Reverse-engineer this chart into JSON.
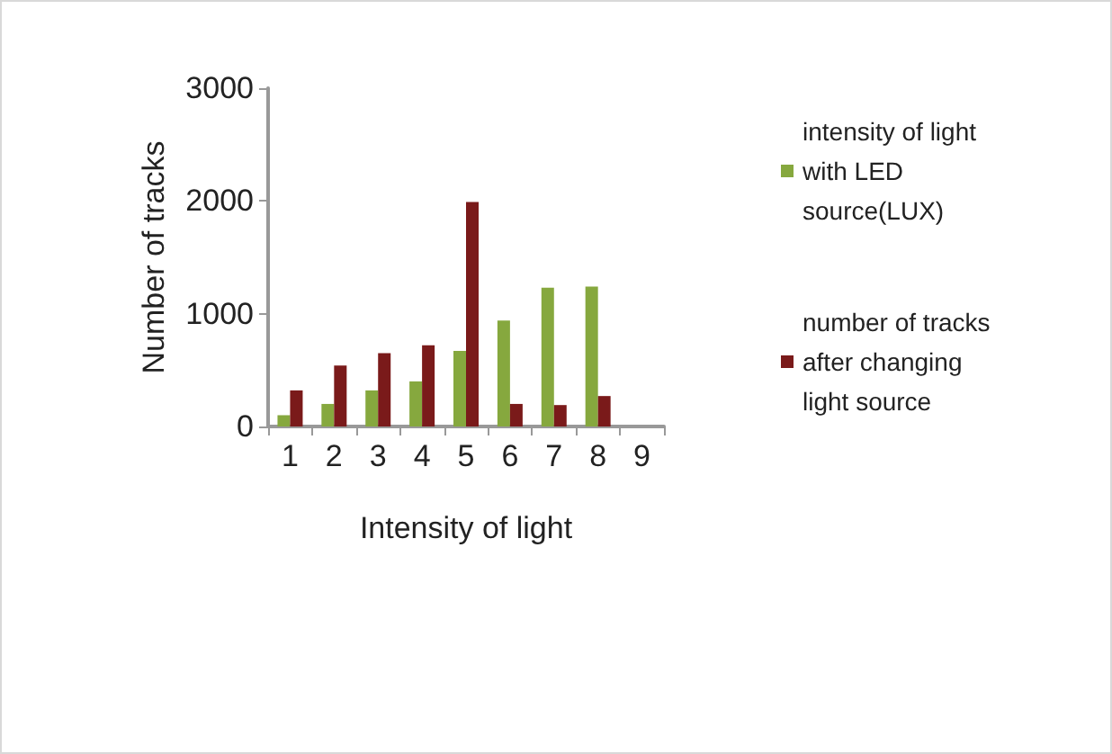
{
  "chart_data": {
    "type": "bar",
    "xlabel": "Intensity of light",
    "ylabel": "Number of tracks",
    "categories": [
      "1",
      "2",
      "3",
      "4",
      "5",
      "6",
      "7",
      "8",
      "9"
    ],
    "series": [
      {
        "name": "intensity of light with LED source(LUX)",
        "color": "#86a83e",
        "values": [
          100,
          200,
          320,
          400,
          670,
          940,
          1230,
          1240,
          null
        ]
      },
      {
        "name": "number of tracks after changing light source",
        "color": "#7a1a1a",
        "values": [
          320,
          540,
          650,
          720,
          1990,
          200,
          190,
          270,
          null
        ]
      }
    ],
    "ylim": [
      0,
      3000
    ],
    "yticks": [
      0,
      1000,
      2000,
      3000
    ],
    "grid": false,
    "legend": "right"
  }
}
